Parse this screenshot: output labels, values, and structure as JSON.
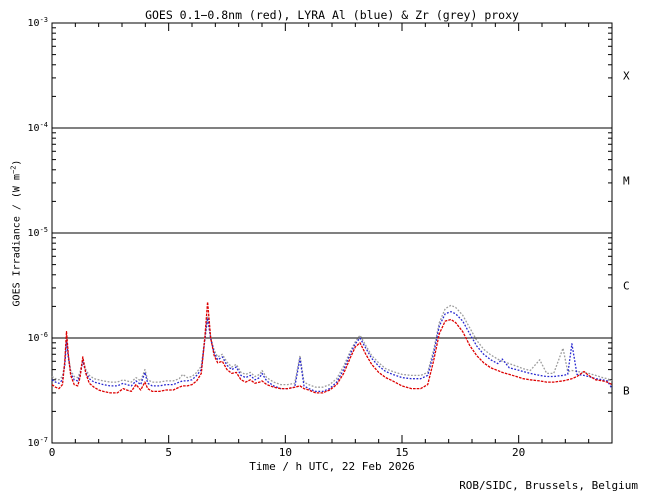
{
  "page": {
    "credit": "ROB/SIDC, Brussels, Belgium"
  },
  "chart_data": {
    "type": "line",
    "title": "GOES 0.1−0.8nm (red), LYRA Al (blue) & Zr (grey) proxy",
    "xlabel": "Time / h UTC, 22 Feb 2026",
    "ylabel_parts": {
      "prefix": "GOES Irradiance / (W m",
      "exp": "−2",
      "suffix": ")"
    },
    "x_range": [
      0,
      24
    ],
    "x_major_ticks": [
      0,
      5,
      10,
      15,
      20
    ],
    "x_minor_step": 1,
    "ylim": [
      1e-07,
      0.001
    ],
    "y_log_range": [
      -7,
      -3
    ],
    "y_scale": "log",
    "y_decade_labels": [
      {
        "base": "10",
        "exp": "-3",
        "log": -3
      },
      {
        "base": "10",
        "exp": "-4",
        "log": -4
      },
      {
        "base": "10",
        "exp": "-5",
        "log": -5
      },
      {
        "base": "10",
        "exp": "-6",
        "log": -6
      },
      {
        "base": "10",
        "exp": "-7",
        "log": -7
      }
    ],
    "hlines_log": [
      -4,
      -5,
      -6
    ],
    "flare_classes": [
      {
        "label": "X",
        "log_center": -3.5
      },
      {
        "label": "M",
        "log_center": -4.5
      },
      {
        "label": "C",
        "log_center": -5.5
      },
      {
        "label": "B",
        "log_center": -6.5
      }
    ],
    "legend_position": "in-title",
    "grid": "horizontal decade lines only",
    "colors": {
      "red": "#dd0000",
      "blue": "#2626d0",
      "grey": "#9c9c9c",
      "axis": "#000000"
    },
    "values_scale": 1e-07,
    "x": [
      0,
      0.15,
      0.3,
      0.45,
      0.55,
      0.62,
      0.7,
      0.8,
      0.95,
      1.1,
      1.2,
      1.32,
      1.45,
      1.6,
      1.8,
      2.0,
      2.2,
      2.5,
      2.8,
      3.05,
      3.2,
      3.4,
      3.6,
      3.8,
      3.98,
      4.1,
      4.3,
      4.6,
      4.9,
      5.2,
      5.45,
      5.6,
      5.8,
      6.0,
      6.2,
      6.4,
      6.55,
      6.67,
      6.8,
      6.95,
      7.1,
      7.3,
      7.5,
      7.7,
      7.9,
      8.1,
      8.3,
      8.5,
      8.7,
      8.9,
      9.0,
      9.2,
      9.5,
      9.8,
      10.1,
      10.4,
      10.63,
      10.8,
      11.0,
      11.3,
      11.6,
      11.9,
      12.2,
      12.5,
      12.8,
      13.0,
      13.2,
      13.45,
      13.7,
      14.0,
      14.3,
      14.6,
      15.0,
      15.4,
      15.8,
      16.1,
      16.35,
      16.6,
      16.85,
      17.1,
      17.3,
      17.6,
      17.9,
      18.2,
      18.5,
      18.8,
      19.1,
      19.3,
      19.6,
      19.9,
      20.2,
      20.5,
      20.9,
      21.2,
      21.5,
      21.9,
      22.1,
      22.28,
      22.5,
      22.8,
      23.0,
      23.3,
      23.6,
      23.8,
      24.0
    ],
    "series": [
      {
        "name": "LYRA Zr proxy",
        "color_key": "grey",
        "values": [
          4.3,
          4.1,
          4.0,
          4.3,
          5.8,
          9.8,
          6.8,
          4.9,
          4.3,
          4.2,
          4.7,
          6.3,
          5.0,
          4.4,
          4.1,
          4.0,
          3.9,
          3.8,
          3.8,
          4.0,
          3.9,
          3.8,
          4.2,
          3.9,
          5.0,
          4.0,
          3.8,
          3.8,
          3.9,
          3.9,
          4.1,
          4.5,
          4.2,
          4.3,
          4.7,
          5.4,
          10,
          16,
          10.2,
          7.6,
          6.6,
          7.0,
          5.9,
          5.3,
          5.6,
          4.7,
          4.5,
          4.7,
          4.3,
          4.5,
          4.9,
          4.2,
          3.8,
          3.6,
          3.6,
          3.7,
          6.8,
          3.8,
          3.6,
          3.4,
          3.4,
          3.6,
          4.1,
          5.4,
          7.6,
          9.2,
          10.6,
          8.5,
          6.8,
          5.8,
          5.1,
          4.8,
          4.5,
          4.4,
          4.4,
          4.7,
          7.6,
          14,
          19,
          20.5,
          19.5,
          16.5,
          12.5,
          9.5,
          7.8,
          6.9,
          6.3,
          6.0,
          5.7,
          5.4,
          5.1,
          4.9,
          6.2,
          4.6,
          4.6,
          8.0,
          4.8,
          4.9,
          4.8,
          4.7,
          4.6,
          4.4,
          4.2,
          4.1,
          3.9
        ]
      },
      {
        "name": "LYRA Al proxy",
        "color_key": "blue",
        "values": [
          4.0,
          3.8,
          3.7,
          4.0,
          5.5,
          9.5,
          6.5,
          4.6,
          4.0,
          3.9,
          4.4,
          6.0,
          4.7,
          4.1,
          3.8,
          3.7,
          3.6,
          3.5,
          3.5,
          3.7,
          3.6,
          3.5,
          3.9,
          3.6,
          4.7,
          3.7,
          3.5,
          3.5,
          3.6,
          3.6,
          3.8,
          3.9,
          3.9,
          4.0,
          4.4,
          5.0,
          9.5,
          15.5,
          9.8,
          7.2,
          6.2,
          6.6,
          5.5,
          5.0,
          5.3,
          4.4,
          4.2,
          4.4,
          4.0,
          4.2,
          4.6,
          3.9,
          3.5,
          3.3,
          3.3,
          3.4,
          6.4,
          3.5,
          3.3,
          3.1,
          3.1,
          3.3,
          3.8,
          5.0,
          7.2,
          8.8,
          10.0,
          8.0,
          6.4,
          5.4,
          4.8,
          4.5,
          4.2,
          4.1,
          4.1,
          4.4,
          7.0,
          13,
          17,
          17.8,
          17,
          14.5,
          11,
          8.4,
          7.0,
          6.2,
          5.7,
          6.3,
          5.2,
          5.0,
          4.8,
          4.6,
          4.4,
          4.3,
          4.3,
          4.4,
          4.5,
          8.8,
          4.5,
          4.4,
          4.3,
          4.1,
          4.0,
          3.9,
          3.3
        ]
      },
      {
        "name": "GOES 0.1-0.8nm",
        "color_key": "red",
        "values": [
          3.6,
          3.4,
          3.3,
          3.6,
          6.0,
          11.5,
          7.0,
          4.4,
          3.6,
          3.5,
          4.2,
          6.6,
          4.6,
          3.7,
          3.4,
          3.2,
          3.1,
          3.0,
          3.0,
          3.3,
          3.2,
          3.1,
          3.6,
          3.2,
          3.8,
          3.3,
          3.1,
          3.1,
          3.2,
          3.2,
          3.4,
          3.5,
          3.5,
          3.6,
          3.9,
          4.6,
          10,
          22,
          10,
          6.8,
          5.8,
          6.0,
          5.0,
          4.6,
          4.7,
          4.0,
          3.8,
          4.0,
          3.7,
          3.8,
          3.9,
          3.6,
          3.4,
          3.3,
          3.3,
          3.4,
          3.5,
          3.3,
          3.2,
          3.0,
          3.0,
          3.2,
          3.6,
          4.6,
          6.6,
          8.2,
          9.0,
          7.0,
          5.6,
          4.7,
          4.2,
          3.9,
          3.5,
          3.3,
          3.3,
          3.6,
          6.0,
          11,
          14.5,
          15,
          14,
          11.5,
          8.5,
          6.8,
          5.8,
          5.2,
          4.9,
          4.7,
          4.5,
          4.3,
          4.1,
          4.0,
          3.9,
          3.8,
          3.8,
          3.9,
          4.0,
          4.1,
          4.3,
          4.8,
          4.4,
          4.0,
          3.9,
          3.8,
          3.6
        ]
      }
    ]
  }
}
